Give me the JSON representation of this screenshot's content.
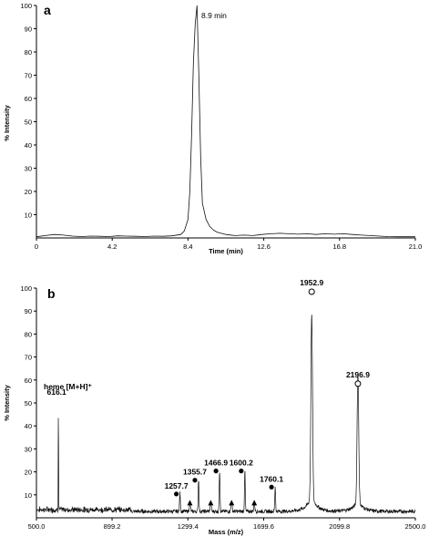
{
  "chart_data": [
    {
      "panel": "a",
      "type": "line",
      "xlabel": "Time (min)",
      "ylabel": "% Intensity",
      "xlim": [
        0,
        21.0
      ],
      "ylim": [
        0,
        100
      ],
      "xticks": [
        "0",
        "4.2",
        "8.4",
        "12.6",
        "16.8",
        "21.0"
      ],
      "yticks": [
        "10",
        "20",
        "30",
        "40",
        "50",
        "60",
        "70",
        "80",
        "90",
        "100"
      ],
      "annotations": [
        {
          "text": "8.9 min",
          "x": 8.9,
          "y": 100
        }
      ],
      "series": [
        {
          "x": [
            0,
            0.5,
            1.0,
            1.5,
            2.0,
            2.5,
            3.0,
            3.5,
            4.0,
            4.5,
            5.0,
            5.5,
            6.0,
            6.5,
            7.0,
            7.5,
            8.0,
            8.2,
            8.4,
            8.5,
            8.6,
            8.7,
            8.8,
            8.9,
            9.0,
            9.1,
            9.2,
            9.4,
            9.6,
            9.8,
            10.0,
            10.5,
            11.0,
            11.5,
            12.0,
            12.5,
            13.0,
            13.5,
            14.0,
            14.5,
            15.0,
            15.5,
            16.0,
            16.5,
            17.0,
            17.5,
            18.0,
            18.5,
            19.0,
            19.5,
            20.0,
            20.5,
            21.0
          ],
          "y": [
            0.5,
            1.0,
            1.5,
            1.2,
            0.8,
            0.6,
            0.8,
            0.7,
            0.6,
            0.9,
            0.8,
            0.7,
            0.6,
            0.8,
            0.7,
            0.9,
            1.5,
            3.0,
            8.0,
            20.0,
            45.0,
            75.0,
            92.0,
            100.0,
            70.0,
            35.0,
            15.0,
            8.0,
            5.0,
            3.5,
            2.5,
            1.5,
            1.0,
            1.2,
            1.0,
            1.5,
            1.8,
            2.0,
            1.8,
            1.6,
            1.8,
            1.5,
            1.8,
            1.6,
            1.8,
            1.5,
            1.2,
            1.0,
            0.8,
            0.6,
            0.5,
            0.5,
            0.5
          ]
        }
      ]
    },
    {
      "panel": "b",
      "type": "line",
      "xlabel": "Mass (m/z)",
      "ylabel": "% Intensity",
      "xlim": [
        500.0,
        2500.0
      ],
      "ylim": [
        0,
        100
      ],
      "xticks": [
        "500.0",
        "899.2",
        "1299.4",
        "1699.6",
        "2099.8",
        "2500.0"
      ],
      "yticks": [
        "10",
        "20",
        "30",
        "40",
        "50",
        "60",
        "70",
        "80",
        "90",
        "100"
      ],
      "peaks": [
        {
          "x": 616.1,
          "y": 52,
          "label": "616.1",
          "marker": "none"
        },
        {
          "x": 1257.7,
          "y": 8,
          "label": "1257.7",
          "marker": "dot"
        },
        {
          "x": 1355.7,
          "y": 14,
          "label": "1355.7",
          "marker": "dot"
        },
        {
          "x": 1466.9,
          "y": 18,
          "label": "1466.9",
          "marker": "dot"
        },
        {
          "x": 1600.2,
          "y": 18,
          "label": "1600.2",
          "marker": "dot"
        },
        {
          "x": 1760.1,
          "y": 11,
          "label": "1760.1",
          "marker": "dot"
        },
        {
          "x": 1952.9,
          "y": 80,
          "label": "1952.9",
          "marker": "circle"
        },
        {
          "x": 2196.9,
          "y": 56,
          "label": "2196.9",
          "marker": "circle"
        }
      ],
      "triangle_markers": [
        1310,
        1420,
        1530,
        1650
      ],
      "annotations": [
        {
          "text": "heme [M+H]⁺",
          "x": 616.1
        }
      ],
      "noise_seed": 7
    }
  ],
  "panel_a_letter": "a",
  "panel_b_letter": "b",
  "annot_a_peak": "8.9 min",
  "annot_heme": "heme [M+H]⁺",
  "a_xlabel": "Time (min)",
  "a_ylabel": "% Intensity",
  "b_xlabel": "Mass (m/z)",
  "b_ylabel": "% Intensity"
}
